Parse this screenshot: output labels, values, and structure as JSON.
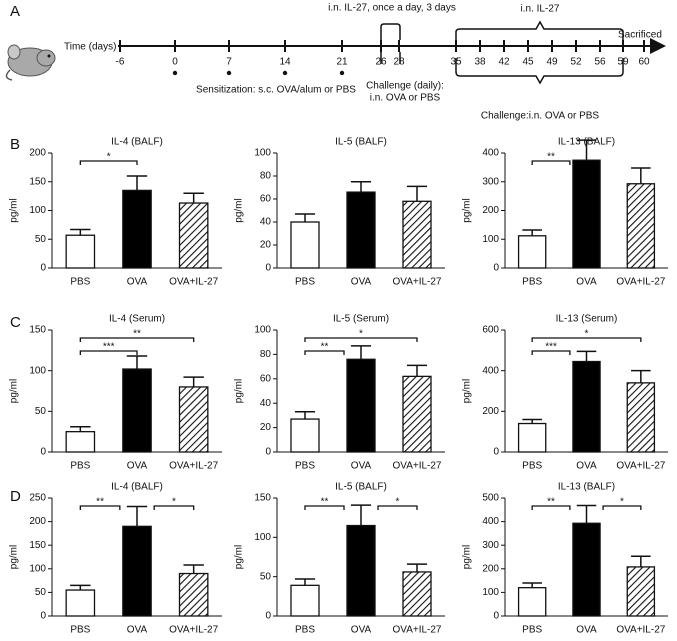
{
  "panels": [
    "A",
    "B",
    "C",
    "D"
  ],
  "timeline": {
    "axis_label": "Time (days)",
    "days": [
      -6,
      0,
      7,
      14,
      21,
      26,
      28,
      35,
      38,
      42,
      45,
      49,
      52,
      56,
      59,
      60
    ],
    "sensitization_label": "Sensitization: s.c. OVA/alum or PBS",
    "il27_short_label": "i.n. IL-27, once a day, 3 days",
    "challenge_daily_label": [
      "Challenge (daily):",
      "i.n. OVA or PBS"
    ],
    "il27_label": "i.n. IL-27",
    "challenge_label": "Challenge:i.n. OVA or PBS",
    "end_label": "Sacrificed"
  },
  "chart_data": [
    {
      "type": "bar",
      "title": "IL-4 (BALF)",
      "y_label": "pg/ml",
      "categories": [
        "PBS",
        "OVA",
        "OVA+IL-27"
      ],
      "values": [
        57,
        135,
        113
      ],
      "errors": [
        10,
        25,
        17
      ],
      "fills": [
        "white",
        "black",
        "hatch"
      ],
      "ylim": [
        0,
        200
      ],
      "yticks": [
        0,
        50,
        100,
        150,
        200
      ],
      "significance": [
        {
          "from": "PBS",
          "to": "OVA",
          "label": "*"
        }
      ]
    },
    {
      "type": "bar",
      "title": "IL-5 (BALF)",
      "y_label": "pg/ml",
      "categories": [
        "PBS",
        "OVA",
        "OVA+IL-27"
      ],
      "values": [
        40,
        66,
        58
      ],
      "errors": [
        7,
        9,
        13
      ],
      "fills": [
        "white",
        "black",
        "hatch"
      ],
      "ylim": [
        0,
        100
      ],
      "yticks": [
        0,
        20,
        40,
        60,
        80,
        100
      ],
      "significance": []
    },
    {
      "type": "bar",
      "title": "IL-13 (BALF)",
      "y_label": "pg/ml",
      "categories": [
        "PBS",
        "OVA",
        "OVA+IL-27"
      ],
      "values": [
        112,
        375,
        293
      ],
      "errors": [
        20,
        70,
        55
      ],
      "fills": [
        "white",
        "black",
        "hatch"
      ],
      "ylim": [
        0,
        400
      ],
      "yticks": [
        0,
        100,
        200,
        300,
        400
      ],
      "significance": [
        {
          "from": "PBS",
          "to": "OVA",
          "label": "**"
        }
      ]
    },
    {
      "type": "bar",
      "title": "IL-4 (Serum)",
      "y_label": "pg/ml",
      "categories": [
        "PBS",
        "OVA",
        "OVA+IL-27"
      ],
      "values": [
        25,
        102,
        80
      ],
      "errors": [
        6,
        16,
        12
      ],
      "fills": [
        "white",
        "black",
        "hatch"
      ],
      "ylim": [
        0,
        150
      ],
      "yticks": [
        0,
        50,
        100,
        150
      ],
      "significance": [
        {
          "from": "PBS",
          "to": "OVA",
          "label": "***"
        },
        {
          "from": "PBS",
          "to": "OVA+IL-27",
          "label": "**"
        }
      ]
    },
    {
      "type": "bar",
      "title": "IL-5 (Serum)",
      "y_label": "pg/ml",
      "categories": [
        "PBS",
        "OVA",
        "OVA+IL-27"
      ],
      "values": [
        27,
        76,
        62
      ],
      "errors": [
        6,
        11,
        9
      ],
      "fills": [
        "white",
        "black",
        "hatch"
      ],
      "ylim": [
        0,
        100
      ],
      "yticks": [
        0,
        20,
        40,
        60,
        80,
        100
      ],
      "significance": [
        {
          "from": "PBS",
          "to": "OVA",
          "label": "**"
        },
        {
          "from": "PBS",
          "to": "OVA+IL-27",
          "label": "*"
        }
      ]
    },
    {
      "type": "bar",
      "title": "IL-13 (Serum)",
      "y_label": "pg/ml",
      "categories": [
        "PBS",
        "OVA",
        "OVA+IL-27"
      ],
      "values": [
        140,
        445,
        340
      ],
      "errors": [
        20,
        50,
        60
      ],
      "fills": [
        "white",
        "black",
        "hatch"
      ],
      "ylim": [
        0,
        600
      ],
      "yticks": [
        0,
        200,
        400,
        600
      ],
      "significance": [
        {
          "from": "PBS",
          "to": "OVA",
          "label": "***"
        },
        {
          "from": "PBS",
          "to": "OVA+IL-27",
          "label": "*"
        }
      ]
    },
    {
      "type": "bar",
      "title": "IL-4 (BALF)",
      "y_label": "pg/ml",
      "categories": [
        "PBS",
        "OVA",
        "OVA+IL-27"
      ],
      "values": [
        55,
        190,
        90
      ],
      "errors": [
        10,
        42,
        18
      ],
      "fills": [
        "white",
        "black",
        "hatch"
      ],
      "ylim": [
        0,
        250
      ],
      "yticks": [
        0,
        50,
        100,
        150,
        200,
        250
      ],
      "significance": [
        {
          "from": "PBS",
          "to": "OVA",
          "label": "**"
        },
        {
          "from": "OVA",
          "to": "OVA+IL-27",
          "label": "*"
        }
      ]
    },
    {
      "type": "bar",
      "title": "IL-5 (BALF)",
      "y_label": "pg/ml",
      "categories": [
        "PBS",
        "OVA",
        "OVA+IL-27"
      ],
      "values": [
        39,
        115,
        56
      ],
      "errors": [
        8,
        26,
        10
      ],
      "fills": [
        "white",
        "black",
        "hatch"
      ],
      "ylim": [
        0,
        150
      ],
      "yticks": [
        0,
        50,
        100,
        150
      ],
      "significance": [
        {
          "from": "PBS",
          "to": "OVA",
          "label": "**"
        },
        {
          "from": "OVA",
          "to": "OVA+IL-27",
          "label": "*"
        }
      ]
    },
    {
      "type": "bar",
      "title": "IL-13 (BALF)",
      "y_label": "pg/ml",
      "categories": [
        "PBS",
        "OVA",
        "OVA+IL-27"
      ],
      "values": [
        120,
        393,
        208
      ],
      "errors": [
        20,
        75,
        45
      ],
      "fills": [
        "white",
        "black",
        "hatch"
      ],
      "ylim": [
        0,
        500
      ],
      "yticks": [
        0,
        100,
        200,
        300,
        400,
        500
      ],
      "significance": [
        {
          "from": "PBS",
          "to": "OVA",
          "label": "**"
        },
        {
          "from": "OVA",
          "to": "OVA+IL-27",
          "label": "*"
        }
      ]
    }
  ]
}
